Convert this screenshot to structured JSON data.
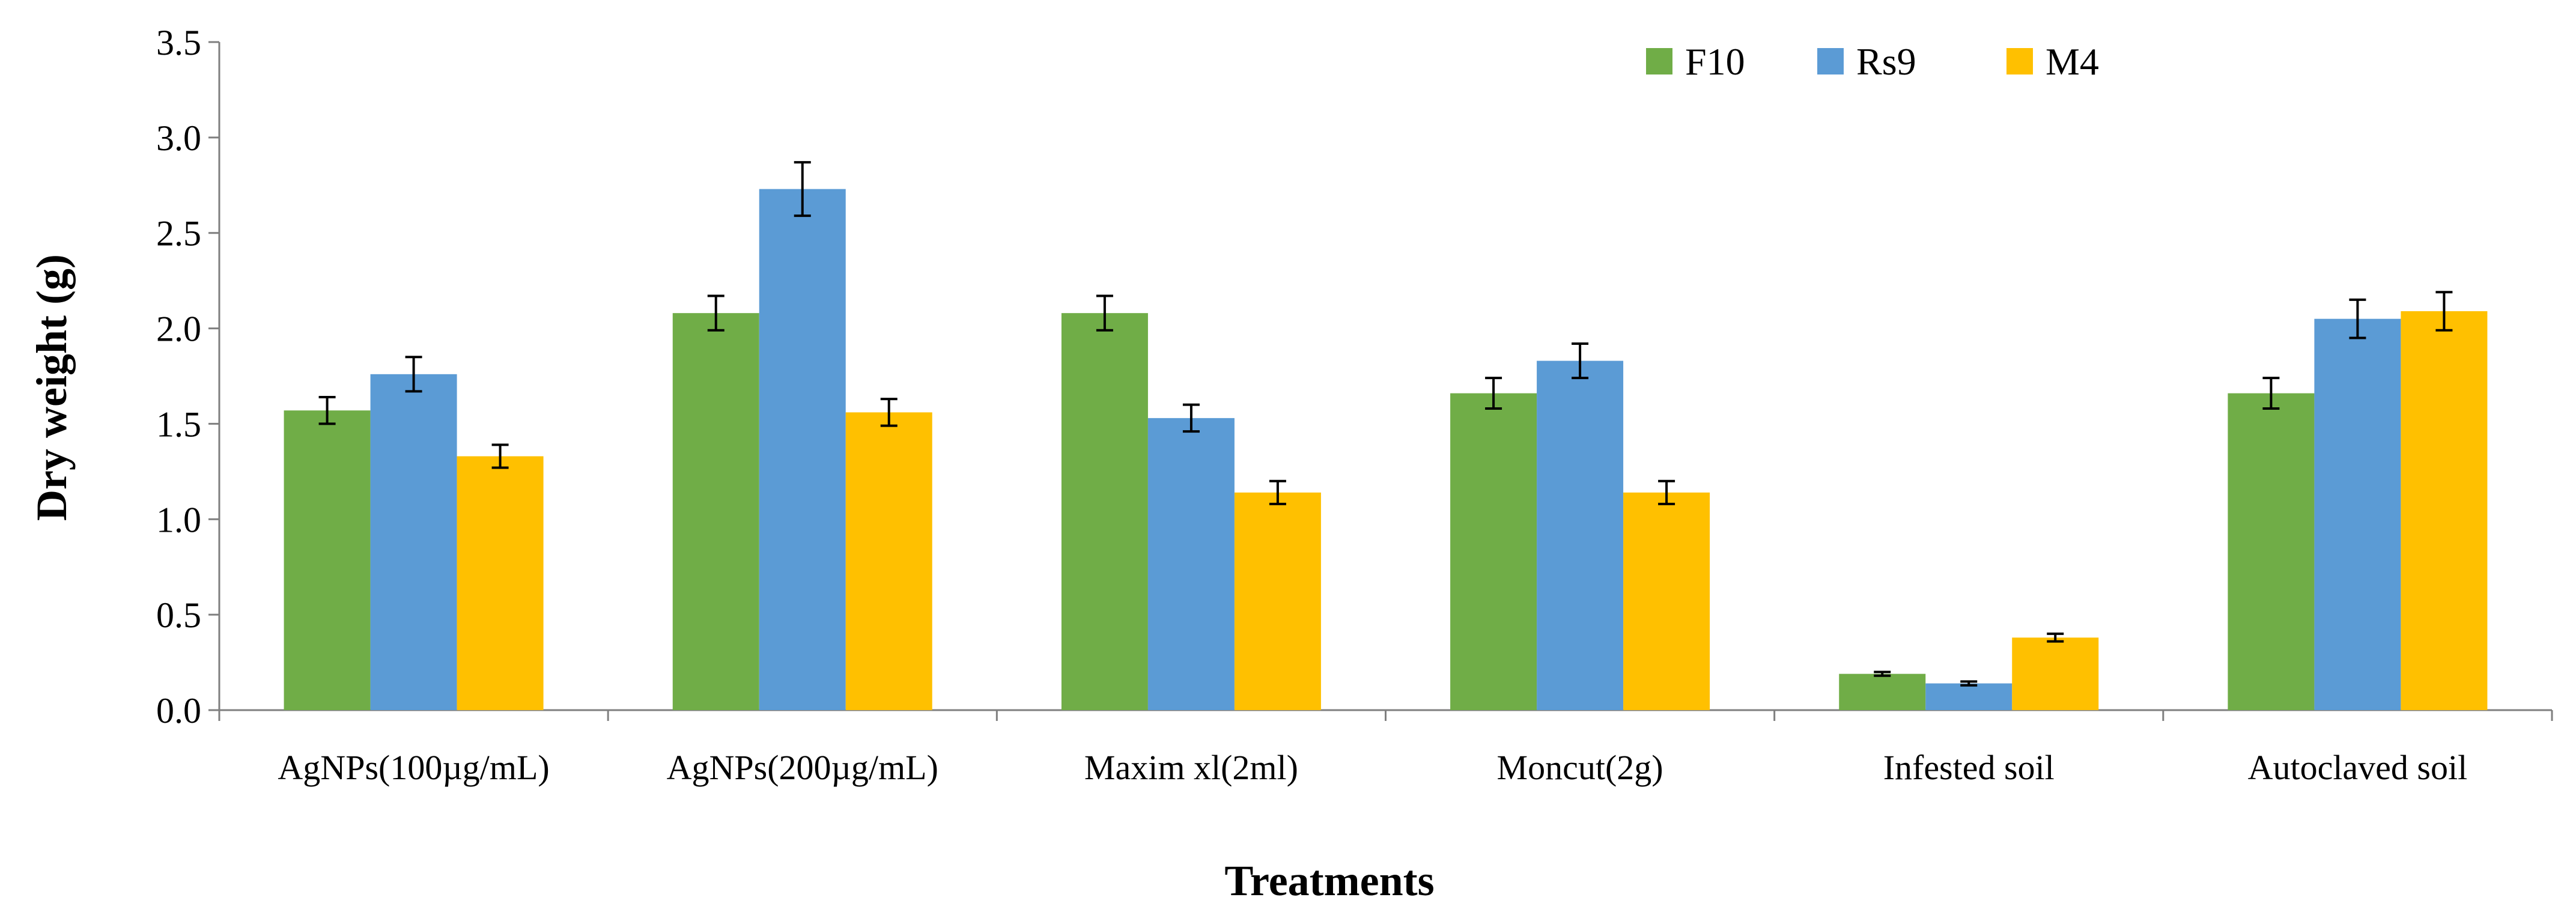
{
  "chart_data": {
    "type": "bar",
    "title": "",
    "xlabel": "Treatments",
    "ylabel": "Dry weight (g)",
    "ylim": [
      0,
      3.5
    ],
    "yticks": [
      "0.0",
      "0.5",
      "1.0",
      "1.5",
      "2.0",
      "2.5",
      "3.0",
      "3.5"
    ],
    "grid": false,
    "legend_position": "top-right",
    "categories": [
      "AgNPs(100µg/mL)",
      "AgNPs(200µg/mL)",
      "Maxim xl(2ml)",
      "Moncut(2g)",
      "Infested soil",
      "Autoclaved soil"
    ],
    "series": [
      {
        "name": "F10",
        "color": "#70ad47",
        "values": [
          1.57,
          2.08,
          2.08,
          1.66,
          0.19,
          1.66
        ],
        "errors": [
          0.07,
          0.09,
          0.09,
          0.08,
          0.01,
          0.08
        ]
      },
      {
        "name": "Rs9",
        "color": "#5b9bd5",
        "values": [
          1.76,
          2.73,
          1.53,
          1.83,
          0.14,
          2.05
        ],
        "errors": [
          0.09,
          0.14,
          0.07,
          0.09,
          0.01,
          0.1
        ]
      },
      {
        "name": "M4",
        "color": "#ffc000",
        "values": [
          1.33,
          1.56,
          1.14,
          1.14,
          0.38,
          2.09
        ],
        "errors": [
          0.06,
          0.07,
          0.06,
          0.06,
          0.02,
          0.1
        ]
      }
    ]
  }
}
